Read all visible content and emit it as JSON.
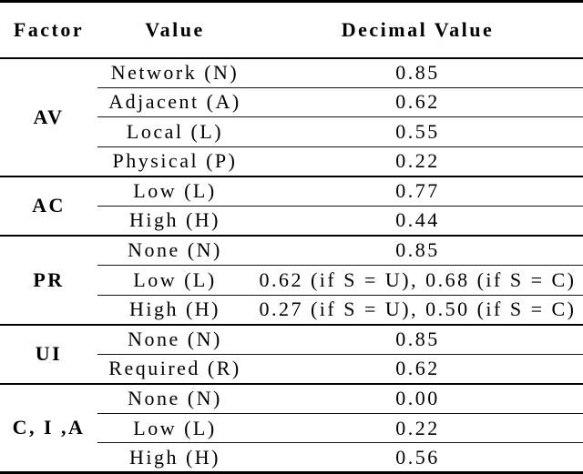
{
  "colors": {
    "background": "#ffffff",
    "text": "#000000",
    "rule": "#000000"
  },
  "chart_data": {
    "type": "table",
    "columns": [
      "Factor",
      "Value",
      "Decimal Value"
    ],
    "groups": [
      {
        "factor": "AV",
        "rows": [
          {
            "value": "Network (N)",
            "decimal": "0.85"
          },
          {
            "value": "Adjacent (A)",
            "decimal": "0.62"
          },
          {
            "value": "Local (L)",
            "decimal": "0.55"
          },
          {
            "value": "Physical (P)",
            "decimal": "0.22"
          }
        ]
      },
      {
        "factor": "AC",
        "rows": [
          {
            "value": "Low (L)",
            "decimal": "0.77"
          },
          {
            "value": "High (H)",
            "decimal": "0.44"
          }
        ]
      },
      {
        "factor": "PR",
        "rows": [
          {
            "value": "None (N)",
            "decimal": "0.85"
          },
          {
            "value": "Low (L)",
            "decimal": "0.62 (if S = U), 0.68 (if S = C)"
          },
          {
            "value": "High (H)",
            "decimal": "0.27 (if S = U), 0.50 (if S = C)"
          }
        ]
      },
      {
        "factor": "UI",
        "rows": [
          {
            "value": "None (N)",
            "decimal": "0.85"
          },
          {
            "value": "Required (R)",
            "decimal": "0.62"
          }
        ]
      },
      {
        "factor": "C, I ,A",
        "rows": [
          {
            "value": "None (N)",
            "decimal": "0.00"
          },
          {
            "value": "Low (L)",
            "decimal": "0.22"
          },
          {
            "value": "High (H)",
            "decimal": "0.56"
          }
        ]
      }
    ]
  }
}
